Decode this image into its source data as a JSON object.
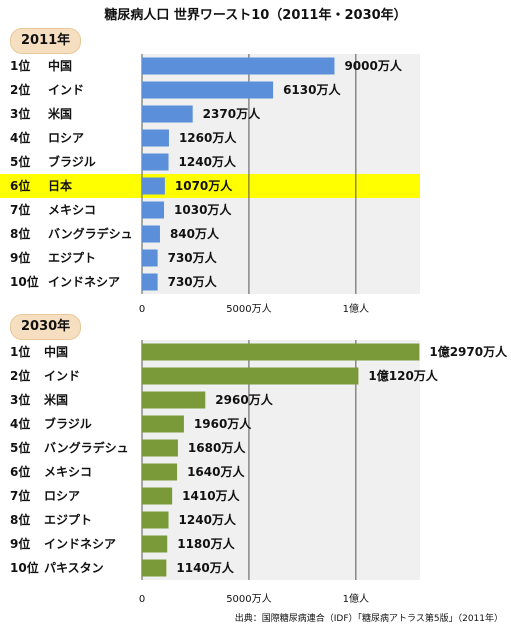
{
  "title": "糖尿病人口 世界ワースト10（2011年・2030年）",
  "source": "出典：国際糖尿病連合（IDF）「糖尿病アトラス第5版」（2011年）",
  "colors": {
    "bar2011": "#5b8fd9",
    "bar2030": "#7a9a3a",
    "plot_bg": "#f0f0f0",
    "highlight": "#ffff00"
  },
  "chart_data": [
    {
      "type": "bar",
      "badge": "2011年",
      "orientation": "horizontal",
      "ranks": [
        "1位",
        "2位",
        "3位",
        "4位",
        "5位",
        "6位",
        "7位",
        "8位",
        "9位",
        "10位"
      ],
      "categories": [
        "中国",
        "インド",
        "米国",
        "ロシア",
        "ブラジル",
        "日本",
        "メキシコ",
        "バングラデシュ",
        "エジプト",
        "インドネシア"
      ],
      "values": [
        9000,
        6130,
        2370,
        1260,
        1240,
        1070,
        1030,
        840,
        730,
        730
      ],
      "value_labels": [
        "9000万人",
        "6130万人",
        "2370万人",
        "1260万人",
        "1240万人",
        "1070万人",
        "1030万人",
        "840万人",
        "730万人",
        "730万人"
      ],
      "unit": "万人",
      "xlim": [
        0,
        13000
      ],
      "x_ticks": [
        0,
        5000,
        10000
      ],
      "x_tick_labels": [
        "0",
        "5000万人",
        "1億人"
      ],
      "highlight_index": 5
    },
    {
      "type": "bar",
      "badge": "2030年",
      "orientation": "horizontal",
      "ranks": [
        "1位",
        "2位",
        "3位",
        "4位",
        "5位",
        "6位",
        "7位",
        "8位",
        "9位",
        "10位"
      ],
      "categories": [
        "中国",
        "インド",
        "米国",
        "ブラジル",
        "バングラデシュ",
        "メキシコ",
        "ロシア",
        "エジプト",
        "インドネシア",
        "パキスタン"
      ],
      "values": [
        12970,
        10120,
        2960,
        1960,
        1680,
        1640,
        1410,
        1240,
        1180,
        1140
      ],
      "value_labels": [
        "1億2970万人",
        "1億120万人",
        "2960万人",
        "1960万人",
        "1680万人",
        "1640万人",
        "1410万人",
        "1240万人",
        "1180万人",
        "1140万人"
      ],
      "unit": "万人",
      "xlim": [
        0,
        13000
      ],
      "x_ticks": [
        0,
        5000,
        10000
      ],
      "x_tick_labels": [
        "0",
        "5000万人",
        "1億人"
      ],
      "highlight_index": null
    }
  ]
}
